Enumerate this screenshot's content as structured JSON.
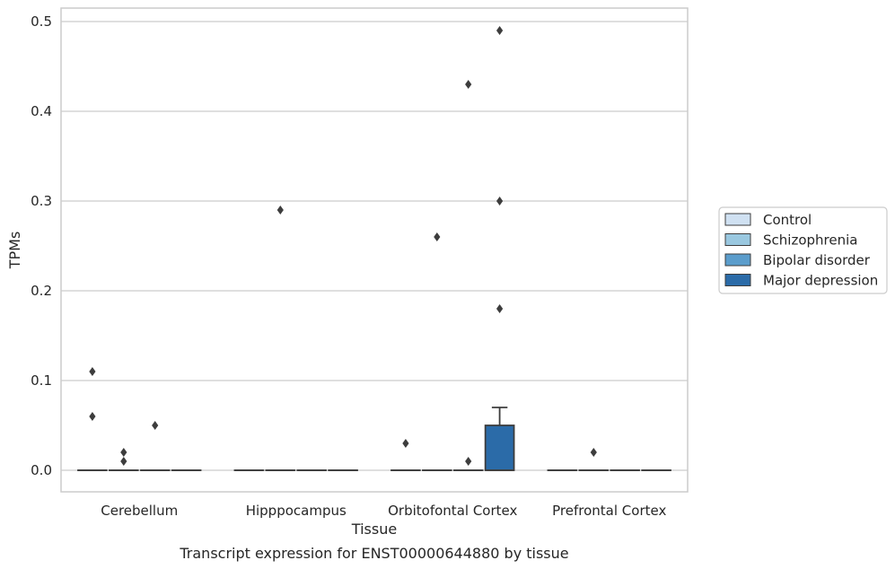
{
  "chart_data": {
    "type": "box",
    "title": "",
    "caption": "Transcript expression for ENST00000644880 by tissue",
    "xlabel": "Tissue",
    "ylabel": "TPMs",
    "ylim": [
      -0.024,
      0.515
    ],
    "yticks": [
      0.0,
      0.1,
      0.2,
      0.3,
      0.4,
      0.5
    ],
    "ytick_labels": [
      "0.0",
      "0.1",
      "0.2",
      "0.3",
      "0.4",
      "0.5"
    ],
    "categories": [
      "Cerebellum",
      "Hipppocampus",
      "Orbitofontal Cortex",
      "Prefrontal Cortex"
    ],
    "grid": true,
    "legend_position": "right",
    "series": [
      {
        "name": "Control",
        "color": "#d0e1f2",
        "boxes": [
          {
            "q1": 0,
            "median": 0,
            "q3": 0,
            "whisker_low": 0,
            "whisker_high": 0,
            "outliers": [
              0.11,
              0.06
            ]
          },
          {
            "q1": 0,
            "median": 0,
            "q3": 0,
            "whisker_low": 0,
            "whisker_high": 0,
            "outliers": []
          },
          {
            "q1": 0,
            "median": 0,
            "q3": 0,
            "whisker_low": 0,
            "whisker_high": 0,
            "outliers": [
              0.03
            ]
          },
          {
            "q1": 0,
            "median": 0,
            "q3": 0,
            "whisker_low": 0,
            "whisker_high": 0,
            "outliers": []
          }
        ]
      },
      {
        "name": "Schizophrenia",
        "color": "#9ac8e0",
        "boxes": [
          {
            "q1": 0,
            "median": 0,
            "q3": 0,
            "whisker_low": 0,
            "whisker_high": 0,
            "outliers": [
              0.02,
              0.01
            ]
          },
          {
            "q1": 0,
            "median": 0,
            "q3": 0,
            "whisker_low": 0,
            "whisker_high": 0,
            "outliers": [
              0.29
            ]
          },
          {
            "q1": 0,
            "median": 0,
            "q3": 0,
            "whisker_low": 0,
            "whisker_high": 0,
            "outliers": [
              0.26
            ]
          },
          {
            "q1": 0,
            "median": 0,
            "q3": 0,
            "whisker_low": 0,
            "whisker_high": 0,
            "outliers": [
              0.02
            ]
          }
        ]
      },
      {
        "name": "Bipolar disorder",
        "color": "#5b9dcc",
        "boxes": [
          {
            "q1": 0,
            "median": 0,
            "q3": 0,
            "whisker_low": 0,
            "whisker_high": 0,
            "outliers": [
              0.05
            ]
          },
          {
            "q1": 0,
            "median": 0,
            "q3": 0,
            "whisker_low": 0,
            "whisker_high": 0,
            "outliers": []
          },
          {
            "q1": 0,
            "median": 0,
            "q3": 0,
            "whisker_low": 0,
            "whisker_high": 0,
            "outliers": [
              0.43,
              0.01
            ]
          },
          {
            "q1": 0,
            "median": 0,
            "q3": 0,
            "whisker_low": 0,
            "whisker_high": 0,
            "outliers": []
          }
        ]
      },
      {
        "name": "Major depression",
        "color": "#2b6ba8",
        "boxes": [
          {
            "q1": 0,
            "median": 0,
            "q3": 0,
            "whisker_low": 0,
            "whisker_high": 0,
            "outliers": []
          },
          {
            "q1": 0,
            "median": 0,
            "q3": 0,
            "whisker_low": 0,
            "whisker_high": 0,
            "outliers": []
          },
          {
            "q1": 0,
            "median": 0,
            "q3": 0.05,
            "whisker_low": 0,
            "whisker_high": 0.07,
            "outliers": [
              0.49,
              0.3,
              0.18
            ]
          },
          {
            "q1": 0,
            "median": 0,
            "q3": 0,
            "whisker_low": 0,
            "whisker_high": 0,
            "outliers": []
          }
        ]
      }
    ]
  }
}
